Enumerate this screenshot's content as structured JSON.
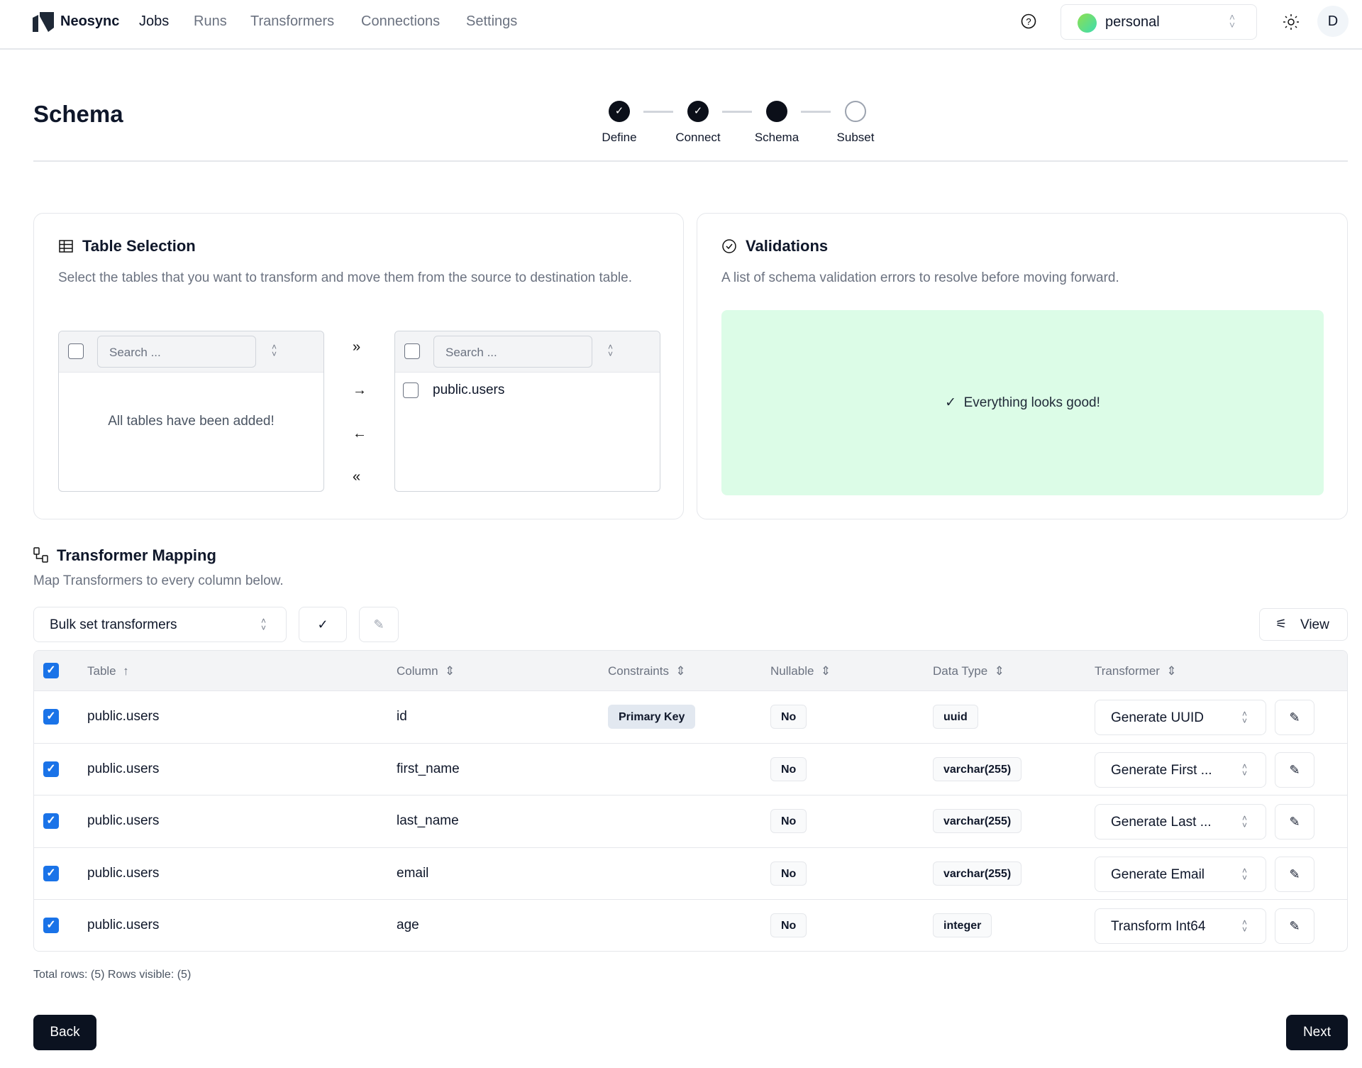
{
  "nav": {
    "brand": "Neosync",
    "links": [
      "Jobs",
      "Runs",
      "Transformers",
      "Connections",
      "Settings"
    ],
    "active": "Jobs",
    "account": "personal",
    "avatar": "D"
  },
  "page": {
    "title": "Schema"
  },
  "stepper": [
    {
      "label": "Define",
      "state": "complete"
    },
    {
      "label": "Connect",
      "state": "complete"
    },
    {
      "label": "Schema",
      "state": "current"
    },
    {
      "label": "Subset",
      "state": "pending"
    }
  ],
  "table_selection": {
    "title": "Table Selection",
    "description": "Select the tables that you want to transform and move them from the source to destination table.",
    "source_placeholder": "Search ...",
    "dest_placeholder": "Search ...",
    "source_empty": "All tables have been added!",
    "dest_items": [
      "public.users"
    ]
  },
  "validations": {
    "title": "Validations",
    "description": "A list of schema validation errors to resolve before moving forward.",
    "status": "Everything looks good!",
    "status_color": "#dcfce7"
  },
  "mapping": {
    "title": "Transformer Mapping",
    "description": "Map Transformers to every column below.",
    "bulk_placeholder": "Bulk set transformers",
    "view_label": "View",
    "headers": [
      "Table",
      "Column",
      "Constraints",
      "Nullable",
      "Data Type",
      "Transformer"
    ],
    "rows": [
      {
        "table": "public.users",
        "column": "id",
        "constraint": "Primary Key",
        "nullable": "No",
        "type": "uuid",
        "transformer": "Generate UUID"
      },
      {
        "table": "public.users",
        "column": "first_name",
        "constraint": "",
        "nullable": "No",
        "type": "varchar(255)",
        "transformer": "Generate First ..."
      },
      {
        "table": "public.users",
        "column": "last_name",
        "constraint": "",
        "nullable": "No",
        "type": "varchar(255)",
        "transformer": "Generate Last ..."
      },
      {
        "table": "public.users",
        "column": "email",
        "constraint": "",
        "nullable": "No",
        "type": "varchar(255)",
        "transformer": "Generate Email"
      },
      {
        "table": "public.users",
        "column": "age",
        "constraint": "",
        "nullable": "No",
        "type": "integer",
        "transformer": "Transform Int64"
      }
    ],
    "footer": "Total rows: (5) Rows visible: (5)"
  },
  "actions": {
    "back": "Back",
    "next": "Next"
  },
  "colors": {
    "checkbox": "#1a73e8",
    "primary_button": "#0b1220"
  }
}
